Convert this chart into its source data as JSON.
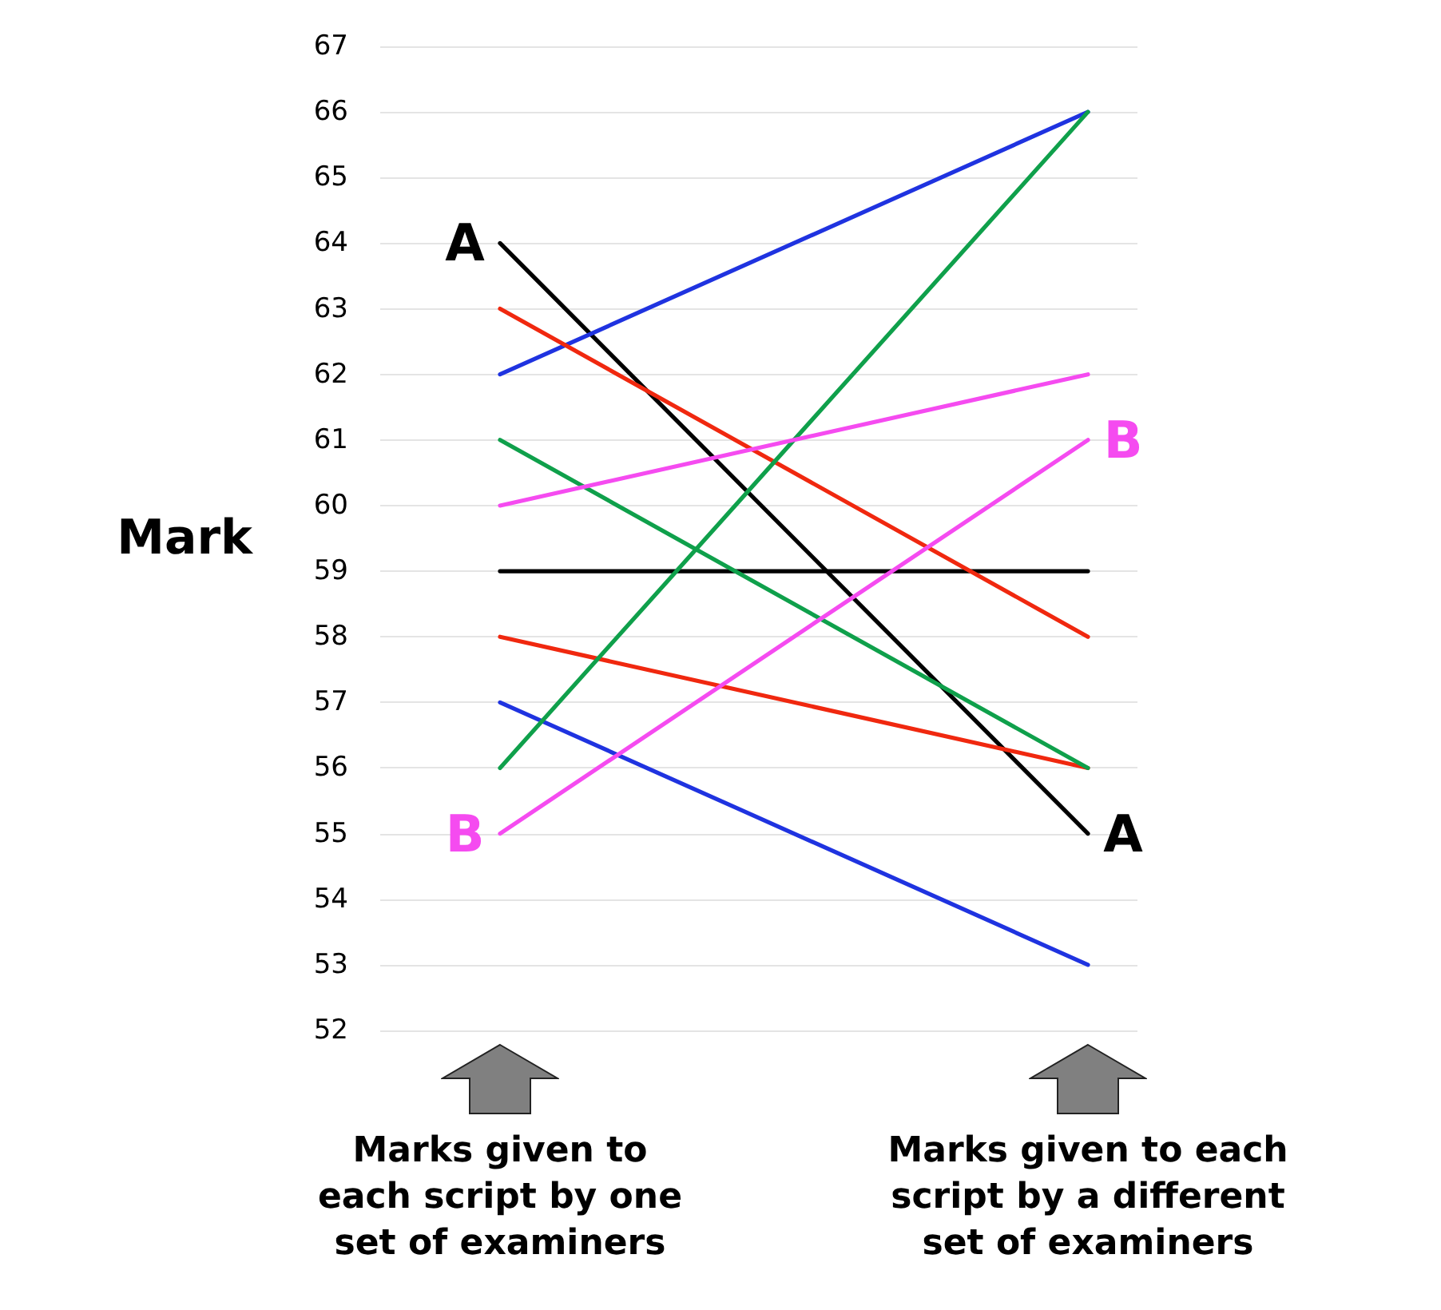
{
  "chart_data": {
    "type": "line",
    "ylabel": "Mark",
    "categories": [
      "Marks given to each script by one set of examiners",
      "Marks given to each script by a different set of examiners"
    ],
    "series": [
      {
        "color": "#000000",
        "values": [
          64,
          55
        ]
      },
      {
        "color": "#000000",
        "values": [
          59,
          59
        ]
      },
      {
        "color": "#1f33e0",
        "values": [
          62,
          66
        ]
      },
      {
        "color": "#1f33e0",
        "values": [
          57,
          53
        ]
      },
      {
        "color": "#f0280f",
        "values": [
          63,
          58
        ]
      },
      {
        "color": "#f0280f",
        "values": [
          58,
          56
        ]
      },
      {
        "color": "#0fa04b",
        "values": [
          61,
          56
        ]
      },
      {
        "color": "#0fa04b",
        "values": [
          56,
          66
        ]
      },
      {
        "color": "#f54bf0",
        "values": [
          60,
          62
        ]
      },
      {
        "color": "#f54bf0",
        "values": [
          55,
          61
        ]
      }
    ],
    "ylim": [
      52,
      67
    ],
    "yticks": [
      52,
      53,
      54,
      55,
      56,
      57,
      58,
      59,
      60,
      61,
      62,
      63,
      64,
      65,
      66,
      67
    ],
    "grid": "y",
    "marker": "none",
    "annotations": [
      {
        "text": "A",
        "x": "Marks given to each script by one set of examiners",
        "y": 64
      },
      {
        "text": "A",
        "x": "Marks given to each script by a different set of examiners",
        "y": 55
      },
      {
        "text": "B",
        "x": "Marks given to each script by one set of examiners",
        "y": 55
      },
      {
        "text": "B",
        "x": "Marks given to each script by a different set of examiners",
        "y": 61
      }
    ]
  }
}
